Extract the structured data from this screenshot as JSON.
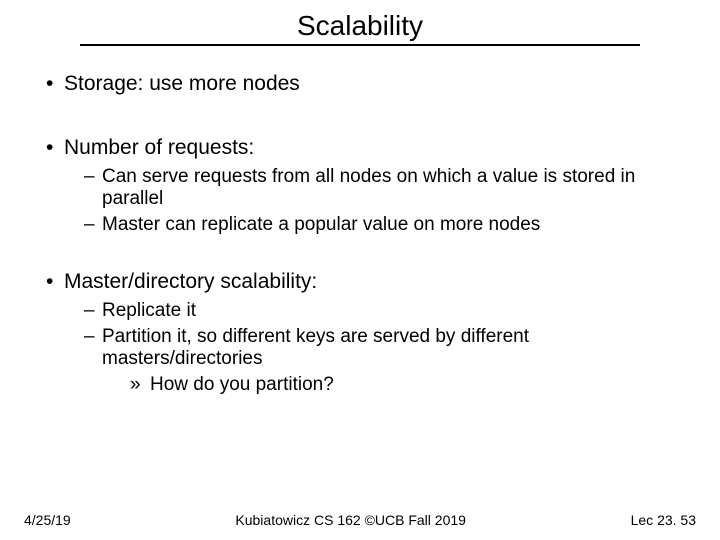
{
  "slide": {
    "title": "Scalability",
    "bullets": {
      "b1": "Storage: use more nodes",
      "b2": "Number of requests:",
      "b2_1": "Can serve requests from all nodes on which a value is stored in parallel",
      "b2_2": "Master can replicate a popular value on more nodes",
      "b3": "Master/directory scalability:",
      "b3_1": "Replicate it",
      "b3_2": "Partition it, so different keys are served by different masters/directories",
      "b3_2_1": "How do you partition?"
    },
    "footer": {
      "left": "4/25/19",
      "center": "Kubiatowicz CS 162 ©UCB Fall 2019",
      "right": "Lec 23. 53"
    }
  },
  "style": {
    "title_fontsize": 28,
    "l1_fontsize": 21,
    "l2_fontsize": 19,
    "l3_fontsize": 19,
    "footer_fontsize": 14,
    "text_color": "#000000",
    "background_color": "#ffffff",
    "rule_color": "#000000"
  }
}
